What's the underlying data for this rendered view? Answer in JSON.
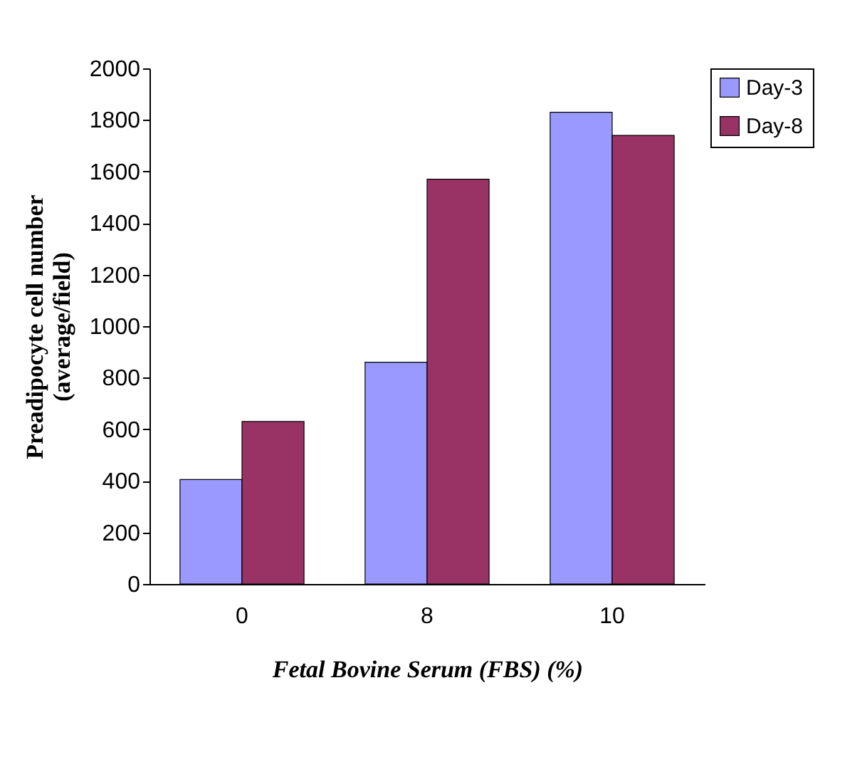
{
  "chart_data": {
    "type": "bar",
    "xlabel": "Fetal Bovine Serum (FBS) (%)",
    "ylabel": "Preadipocyte cell number\n(average/field)",
    "categories": [
      "0",
      "8",
      "10"
    ],
    "series": [
      {
        "name": "Day-3",
        "color": "#9999ff",
        "values": [
          405,
          860,
          1830
        ]
      },
      {
        "name": "Day-8",
        "color": "#993366",
        "values": [
          630,
          1570,
          1740
        ]
      }
    ],
    "ylim": [
      0,
      2000
    ],
    "yticks": [
      0,
      200,
      400,
      600,
      800,
      1000,
      1200,
      1400,
      1600,
      1800,
      2000
    ],
    "grid": false,
    "legend": "right"
  }
}
